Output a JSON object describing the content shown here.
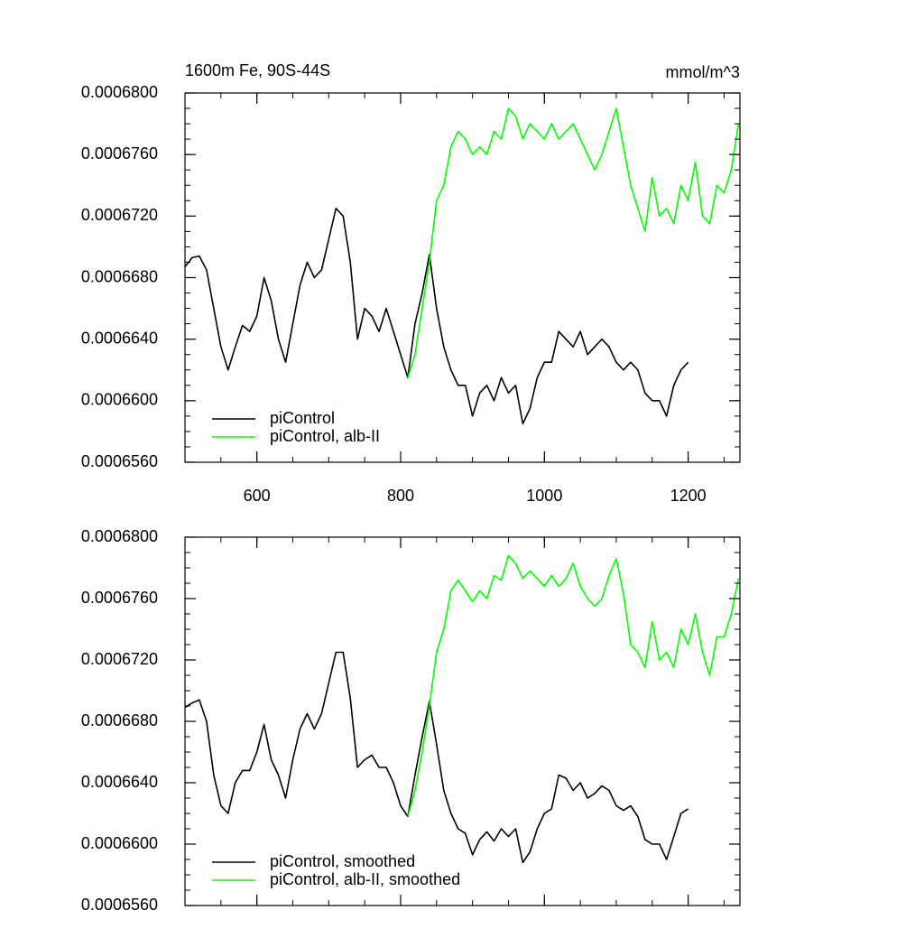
{
  "chart_data": [
    {
      "type": "line",
      "title": "1600m Fe, 90S-44S",
      "y_units": "mmol/m^3",
      "x": [
        500,
        510,
        520,
        530,
        540,
        550,
        560,
        570,
        580,
        590,
        600,
        610,
        620,
        630,
        640,
        650,
        660,
        670,
        680,
        690,
        700,
        710,
        720,
        730,
        740,
        750,
        760,
        770,
        780,
        790,
        800,
        810,
        820,
        830,
        840,
        850,
        860,
        870,
        880,
        890,
        900,
        910,
        920,
        930,
        940,
        950,
        960,
        970,
        980,
        990,
        1000,
        1010,
        1020,
        1030,
        1040,
        1050,
        1060,
        1070,
        1080,
        1090,
        1100,
        1110,
        1120,
        1130,
        1140,
        1150,
        1160,
        1170,
        1180,
        1190,
        1200,
        1210,
        1220,
        1230,
        1240,
        1250,
        1260,
        1270
      ],
      "series": [
        {
          "name": "piControl",
          "color": "#000000",
          "values": [
            0.0006687,
            0.0006693,
            0.0006694,
            0.0006685,
            0.000666,
            0.0006635,
            0.000662,
            0.0006635,
            0.0006649,
            0.0006645,
            0.0006655,
            0.000668,
            0.0006665,
            0.000664,
            0.0006625,
            0.000665,
            0.0006675,
            0.000669,
            0.000668,
            0.0006685,
            0.0006705,
            0.0006725,
            0.000672,
            0.000669,
            0.000664,
            0.000666,
            0.0006655,
            0.0006645,
            0.000666,
            0.0006645,
            0.000663,
            0.0006615,
            0.000665,
            0.000667,
            0.0006695,
            0.000666,
            0.0006635,
            0.000662,
            0.000661,
            0.000661,
            0.000659,
            0.0006605,
            0.000661,
            0.00066,
            0.0006615,
            0.0006605,
            0.000661,
            0.0006585,
            0.0006595,
            0.0006615,
            0.0006625,
            0.0006625,
            0.0006645,
            0.000664,
            0.0006635,
            0.0006645,
            0.000663,
            0.0006635,
            0.000664,
            0.0006635,
            0.0006625,
            0.000662,
            0.0006625,
            0.000662,
            0.0006605,
            0.00066,
            0.00066,
            0.000659,
            0.000661,
            0.000662,
            0.0006625,
            null,
            null,
            null,
            null,
            null,
            null,
            null
          ]
        },
        {
          "name": "piControl, alb-II",
          "color": "#00ff00",
          "values": [
            null,
            null,
            null,
            null,
            null,
            null,
            null,
            null,
            null,
            null,
            null,
            null,
            null,
            null,
            null,
            null,
            null,
            null,
            null,
            null,
            null,
            null,
            null,
            null,
            null,
            null,
            null,
            null,
            null,
            null,
            null,
            0.0006615,
            0.000663,
            0.000666,
            0.000669,
            0.000673,
            0.000674,
            0.0006765,
            0.0006775,
            0.000677,
            0.000676,
            0.0006765,
            0.000676,
            0.0006775,
            0.000677,
            0.000679,
            0.0006785,
            0.000677,
            0.000678,
            0.0006775,
            0.000677,
            0.000678,
            0.000677,
            0.0006775,
            0.000678,
            0.000677,
            0.000676,
            0.000675,
            0.000676,
            0.0006775,
            0.000679,
            0.0006765,
            0.000674,
            0.0006725,
            0.000671,
            0.0006745,
            0.000672,
            0.0006725,
            0.0006715,
            0.000674,
            0.000673,
            0.0006755,
            0.000672,
            0.0006715,
            0.000674,
            0.0006735,
            0.000675,
            0.000678
          ]
        }
      ],
      "xlim": [
        500,
        1272
      ],
      "ylim": [
        0.000656,
        0.00068
      ],
      "xticks": [
        600,
        800,
        1000,
        1200
      ],
      "show_xtick_labels": true,
      "yticks": [
        {
          "value": 0.000656,
          "label": "0.0006560"
        },
        {
          "value": 0.00066,
          "label": "0.0006600"
        },
        {
          "value": 0.000664,
          "label": "0.0006640"
        },
        {
          "value": 0.000668,
          "label": "0.0006680"
        },
        {
          "value": 0.000672,
          "label": "0.0006720"
        },
        {
          "value": 0.000676,
          "label": "0.0006760"
        },
        {
          "value": 0.00068,
          "label": "0.0006800"
        }
      ],
      "legend": "lower left"
    },
    {
      "type": "line",
      "x": [
        500,
        510,
        520,
        530,
        540,
        550,
        560,
        570,
        580,
        590,
        600,
        610,
        620,
        630,
        640,
        650,
        660,
        670,
        680,
        690,
        700,
        710,
        720,
        730,
        740,
        750,
        760,
        770,
        780,
        790,
        800,
        810,
        820,
        830,
        840,
        850,
        860,
        870,
        880,
        890,
        900,
        910,
        920,
        930,
        940,
        950,
        960,
        970,
        980,
        990,
        1000,
        1010,
        1020,
        1030,
        1040,
        1050,
        1060,
        1070,
        1080,
        1090,
        1100,
        1110,
        1120,
        1130,
        1140,
        1150,
        1160,
        1170,
        1180,
        1190,
        1200,
        1210,
        1220,
        1230,
        1240,
        1250,
        1260,
        1270
      ],
      "series": [
        {
          "name": "piControl, smoothed",
          "color": "#000000",
          "values": [
            0.0006689,
            0.0006692,
            0.0006694,
            0.000668,
            0.0006645,
            0.0006625,
            0.000662,
            0.000664,
            0.0006648,
            0.0006648,
            0.000666,
            0.0006678,
            0.0006655,
            0.0006645,
            0.000663,
            0.0006655,
            0.0006675,
            0.0006685,
            0.0006675,
            0.0006685,
            0.0006705,
            0.0006725,
            0.0006725,
            0.0006695,
            0.000665,
            0.0006655,
            0.0006658,
            0.000665,
            0.000665,
            0.000664,
            0.0006625,
            0.0006618,
            0.0006645,
            0.000667,
            0.0006693,
            0.0006665,
            0.0006635,
            0.000662,
            0.000661,
            0.0006607,
            0.0006593,
            0.0006603,
            0.0006608,
            0.0006602,
            0.000661,
            0.0006605,
            0.000661,
            0.0006588,
            0.0006595,
            0.000661,
            0.000662,
            0.0006623,
            0.0006645,
            0.0006643,
            0.0006635,
            0.000664,
            0.000663,
            0.0006633,
            0.0006638,
            0.0006635,
            0.0006625,
            0.0006622,
            0.0006625,
            0.0006618,
            0.0006603,
            0.00066,
            0.00066,
            0.000659,
            0.0006605,
            0.000662,
            0.0006623,
            null,
            null,
            null,
            null,
            null,
            null,
            null
          ]
        },
        {
          "name": "piControl, alb-II, smoothed",
          "color": "#00ff00",
          "values": [
            null,
            null,
            null,
            null,
            null,
            null,
            null,
            null,
            null,
            null,
            null,
            null,
            null,
            null,
            null,
            null,
            null,
            null,
            null,
            null,
            null,
            null,
            null,
            null,
            null,
            null,
            null,
            null,
            null,
            null,
            null,
            0.0006618,
            0.0006635,
            0.000666,
            0.000669,
            0.0006725,
            0.000674,
            0.0006765,
            0.0006772,
            0.0006765,
            0.0006758,
            0.0006765,
            0.000676,
            0.0006775,
            0.0006772,
            0.0006788,
            0.0006783,
            0.0006773,
            0.0006778,
            0.0006773,
            0.0006768,
            0.0006775,
            0.0006768,
            0.0006773,
            0.0006783,
            0.0006768,
            0.000676,
            0.0006755,
            0.000676,
            0.0006775,
            0.0006786,
            0.0006763,
            0.000673,
            0.0006725,
            0.0006715,
            0.0006745,
            0.000672,
            0.0006725,
            0.0006715,
            0.000674,
            0.000673,
            0.000675,
            0.0006725,
            0.000671,
            0.0006735,
            0.0006735,
            0.000675,
            0.0006773
          ]
        }
      ],
      "xlim": [
        500,
        1272
      ],
      "ylim": [
        0.000656,
        0.00068
      ],
      "xticks": [
        600,
        800,
        1000,
        1200
      ],
      "show_xtick_labels": false,
      "yticks": [
        {
          "value": 0.000656,
          "label": "0.0006560"
        },
        {
          "value": 0.00066,
          "label": "0.0006600"
        },
        {
          "value": 0.000664,
          "label": "0.0006640"
        },
        {
          "value": 0.000668,
          "label": "0.0006680"
        },
        {
          "value": 0.000672,
          "label": "0.0006720"
        },
        {
          "value": 0.000676,
          "label": "0.0006760"
        },
        {
          "value": 0.00068,
          "label": "0.0006800"
        }
      ],
      "legend": "lower left"
    }
  ]
}
